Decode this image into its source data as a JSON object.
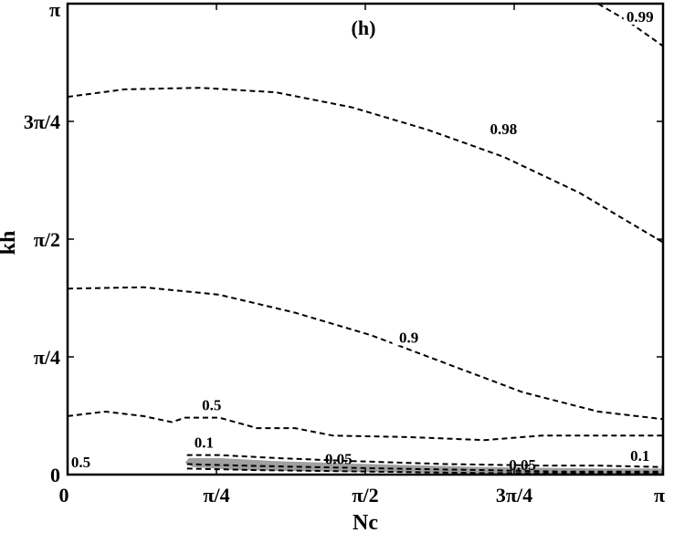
{
  "chart_data": {
    "type": "line",
    "title": "",
    "panel_label": "(h)",
    "xlabel": "Nc",
    "ylabel": "kh",
    "xlim": [
      0,
      3.14159
    ],
    "ylim": [
      0,
      3.14159
    ],
    "xticks": [
      {
        "value": 0,
        "label": "0"
      },
      {
        "value": 0.7854,
        "label": "π/4"
      },
      {
        "value": 1.5708,
        "label": "π/2"
      },
      {
        "value": 2.3562,
        "label": "3π/4"
      },
      {
        "value": 3.14159,
        "label": "π"
      }
    ],
    "yticks": [
      {
        "value": 0,
        "label": "0"
      },
      {
        "value": 0.7854,
        "label": "π/4"
      },
      {
        "value": 1.5708,
        "label": "π/2"
      },
      {
        "value": 2.3562,
        "label": "3π/4"
      },
      {
        "value": 3.14159,
        "label": "π"
      }
    ],
    "grid": false,
    "shaded_region": {
      "color": "#a0a0a0",
      "points": [
        [
          0.64,
          0.11
        ],
        [
          0.8,
          0.11
        ],
        [
          1.1,
          0.09
        ],
        [
          1.6,
          0.07
        ],
        [
          2.2,
          0.05
        ],
        [
          2.8,
          0.04
        ],
        [
          3.14,
          0.04
        ],
        [
          3.14,
          0.0
        ],
        [
          2.6,
          0.0
        ],
        [
          2.0,
          0.01
        ],
        [
          1.4,
          0.02
        ],
        [
          0.9,
          0.03
        ],
        [
          0.66,
          0.05
        ],
        [
          0.62,
          0.08
        ]
      ]
    },
    "contours": [
      {
        "level": "0.99",
        "label_at": [
          3.02,
          3.02
        ],
        "points": [
          [
            2.8,
            3.14
          ],
          [
            2.95,
            3.03
          ],
          [
            3.14,
            2.86
          ]
        ]
      },
      {
        "level": "0.98",
        "label_at": [
          2.3,
          2.27
        ],
        "points": [
          [
            0,
            2.52
          ],
          [
            0.3,
            2.57
          ],
          [
            0.7,
            2.58
          ],
          [
            1.1,
            2.55
          ],
          [
            1.5,
            2.45
          ],
          [
            1.9,
            2.3
          ],
          [
            2.3,
            2.12
          ],
          [
            2.7,
            1.88
          ],
          [
            3.14,
            1.55
          ]
        ]
      },
      {
        "level": "0.9",
        "label_at": [
          1.8,
          0.88
        ],
        "points": [
          [
            0,
            1.24
          ],
          [
            0.4,
            1.25
          ],
          [
            0.8,
            1.2
          ],
          [
            1.2,
            1.08
          ],
          [
            1.6,
            0.93
          ],
          [
            2.0,
            0.74
          ],
          [
            2.4,
            0.55
          ],
          [
            2.8,
            0.42
          ],
          [
            3.14,
            0.37
          ]
        ]
      },
      {
        "level": "0.5",
        "label_at": [
          0.76,
          0.43
        ],
        "points": [
          [
            0,
            0.39
          ],
          [
            0.2,
            0.42
          ],
          [
            0.4,
            0.39
          ],
          [
            0.55,
            0.35
          ],
          [
            0.62,
            0.38
          ],
          [
            0.8,
            0.38
          ],
          [
            1.0,
            0.31
          ],
          [
            1.2,
            0.31
          ],
          [
            1.4,
            0.26
          ],
          [
            1.8,
            0.25
          ],
          [
            2.2,
            0.23
          ],
          [
            2.5,
            0.26
          ],
          [
            2.8,
            0.26
          ],
          [
            3.14,
            0.26
          ]
        ]
      },
      {
        "level": "0.1",
        "label_at": [
          0.72,
          0.18
        ],
        "points": [
          [
            0.63,
            0.13
          ],
          [
            0.8,
            0.13
          ],
          [
            1.1,
            0.11
          ],
          [
            1.5,
            0.09
          ],
          [
            2.0,
            0.07
          ],
          [
            2.5,
            0.06
          ],
          [
            2.8,
            0.06
          ],
          [
            3.14,
            0.05
          ]
        ]
      },
      {
        "level": "0.05",
        "label_at": [
          1.43,
          0.07
        ],
        "points": [
          [
            0.63,
            0.07
          ],
          [
            0.9,
            0.06
          ],
          [
            1.3,
            0.05
          ],
          [
            1.7,
            0.04
          ],
          [
            2.2,
            0.03
          ],
          [
            2.6,
            0.02
          ],
          [
            3.14,
            0.02
          ]
        ]
      },
      {
        "level": "0.05",
        "label_at": [
          2.4,
          0.03
        ],
        "points": [
          [
            0.63,
            0.04
          ],
          [
            1.0,
            0.03
          ],
          [
            1.6,
            0.02
          ],
          [
            2.2,
            0.01
          ],
          [
            3.14,
            0.01
          ]
        ]
      }
    ],
    "extra_labels": [
      {
        "text": "0.5",
        "at": [
          0.07,
          0.05
        ]
      },
      {
        "text": "0.1",
        "at": [
          3.02,
          0.09
        ]
      }
    ]
  }
}
